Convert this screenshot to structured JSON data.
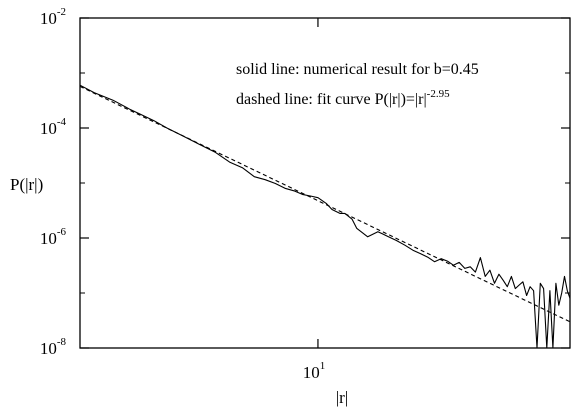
{
  "chart_data": {
    "type": "line",
    "title": "",
    "xlabel": "|r|",
    "ylabel": "P(|r|)",
    "x_scale": "log",
    "y_scale": "log",
    "xlim": [
      2,
      55
    ],
    "ylim": [
      1e-08,
      0.01
    ],
    "grid": false,
    "x_ticks": [
      {
        "value": 10,
        "base": "10",
        "exp": "1"
      }
    ],
    "y_ticks": [
      {
        "value": 1e-08,
        "base": "10",
        "exp": "-8"
      },
      {
        "value": 1e-06,
        "base": "10",
        "exp": "-6"
      },
      {
        "value": 0.0001,
        "base": "10",
        "exp": "-4"
      },
      {
        "value": 0.01,
        "base": "10",
        "exp": "-2"
      }
    ],
    "annotations": [
      {
        "text": "solid line: numerical result for b=0.45"
      },
      {
        "text": "dashed line: fit curve P(|r|)=|r|",
        "sup": "-2.95"
      }
    ],
    "series": [
      {
        "style": "solid",
        "color": "#000000",
        "x": [
          2.0,
          2.2,
          2.5,
          2.8,
          3.0,
          3.3,
          3.6,
          4.0,
          4.5,
          5.0,
          5.5,
          6.0,
          6.5,
          7.0,
          7.5,
          8.0,
          8.5,
          9.0,
          9.5,
          10.0,
          10.6,
          11.0,
          11.6,
          12.0,
          12.6,
          13.0,
          14.0,
          15.0,
          16.0,
          17.0,
          18.0,
          19.0,
          20.0,
          21.0,
          22.0,
          23.0,
          24.0,
          25.0,
          26.0,
          27.0,
          28.0,
          29.0,
          30.0,
          31.0,
          32.0,
          33.0,
          34.0,
          35.0,
          36.0,
          37.0,
          38.0,
          39.0,
          40.0,
          41.0,
          42.0,
          43.0,
          44.0,
          45.0,
          46.0,
          47.0,
          48.0,
          49.0,
          50.0,
          51.0,
          52.0,
          53.0,
          54.0,
          55.0
        ],
        "y": [
          0.0006,
          0.00044,
          0.00032,
          0.00022,
          0.00018,
          0.000136,
          0.0001,
          7.2e-05,
          5e-05,
          3.6e-05,
          2.4e-05,
          1.9e-05,
          1.3e-05,
          1.15e-05,
          9.8e-06,
          8e-06,
          7.2e-06,
          6.2e-06,
          5.8e-06,
          5.4e-06,
          4.2e-06,
          3.3e-06,
          2.8e-06,
          2.8e-06,
          2.2e-06,
          1.5e-06,
          1.05e-06,
          1.3e-06,
          1.08e-06,
          9e-07,
          7.4e-07,
          6e-07,
          5.2e-07,
          4.5e-07,
          3.7e-07,
          4.2e-07,
          3.8e-07,
          3.2e-07,
          3.6e-07,
          2.8e-07,
          3e-07,
          2.4e-07,
          4.4e-07,
          2e-07,
          2.6e-07,
          1.5e-07,
          2.2e-07,
          1.7e-07,
          1.3e-07,
          2e-07,
          1.2e-07,
          1.4e-07,
          1.6e-07,
          9e-08,
          1.3e-07,
          1.1e-07,
          1e-08,
          1.5e-07,
          1.2e-07,
          1e-08,
          1.1e-07,
          1e-08,
          1.5e-07,
          6e-08,
          1e-07,
          2e-07,
          1.1e-07,
          8e-08
        ]
      },
      {
        "style": "dashed",
        "color": "#000000",
        "x": [
          2,
          55
        ],
        "y": [
          0.00057,
          3e-08
        ]
      }
    ]
  }
}
